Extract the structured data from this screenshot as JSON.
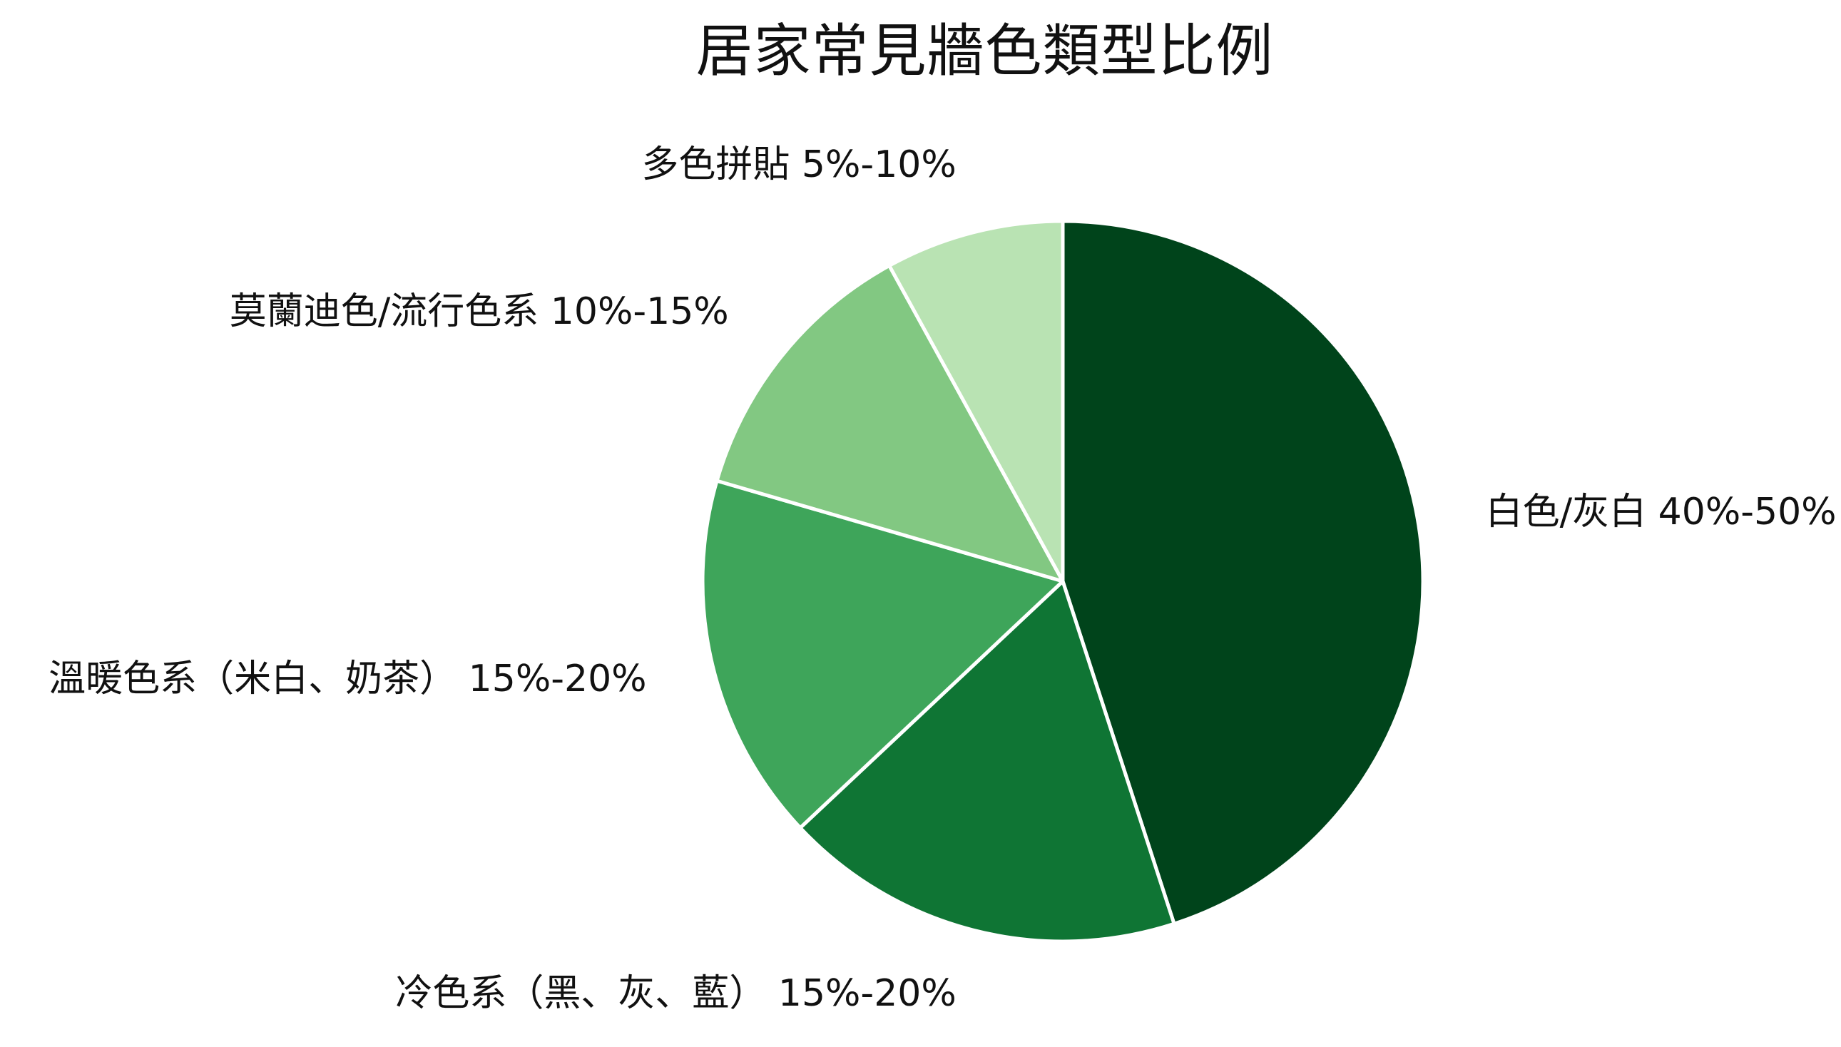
{
  "chart_data": {
    "type": "pie",
    "title": "居家常見牆色類型比例",
    "start_angle": 90,
    "direction": "clockwise",
    "slices": [
      {
        "label": "白色/灰白 40%-50%",
        "value": 45,
        "color": "#00441b"
      },
      {
        "label": "冷色系（黑、灰、藍） 15%-20%",
        "value": 18,
        "color": "#0f7534"
      },
      {
        "label": "溫暖色系（米白、奶茶） 15%-20%",
        "value": 16.5,
        "color": "#3ea55a"
      },
      {
        "label": "莫蘭迪色/流行色系 10%-15%",
        "value": 12.5,
        "color": "#82c882"
      },
      {
        "label": "多色拼貼 5%-10%",
        "value": 8,
        "color": "#b9e3b3"
      }
    ]
  }
}
